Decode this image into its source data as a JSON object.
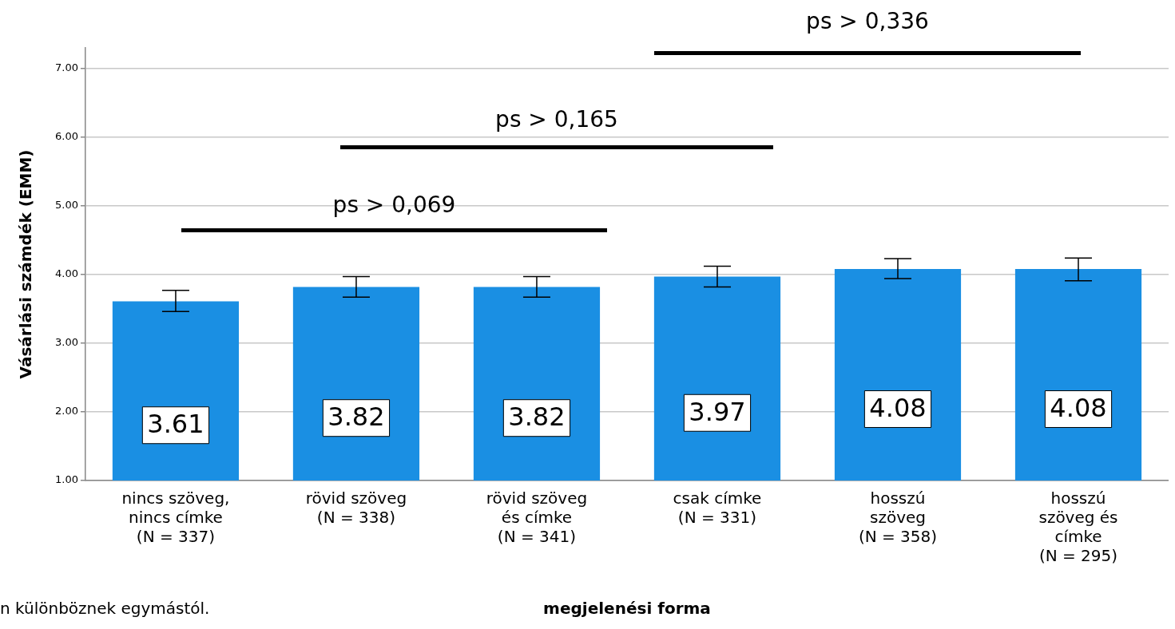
{
  "chart_data": {
    "type": "bar",
    "categories": [
      "nincs szöveg,\nnincs címke\n(N = 337)",
      "rövid szöveg\n(N = 338)",
      "rövid szöveg\nés címke\n(N = 341)",
      "csak címke\n(N = 331)",
      "hosszú\nszöveg\n(N = 358)",
      "hosszú\nszöveg és\ncímke\n(N = 295)"
    ],
    "values": [
      3.61,
      3.82,
      3.82,
      3.97,
      4.08,
      4.08
    ],
    "errors": [
      [
        3.46,
        3.77
      ],
      [
        3.67,
        3.97
      ],
      [
        3.67,
        3.97
      ],
      [
        3.82,
        4.12
      ],
      [
        3.94,
        4.23
      ],
      [
        3.91,
        4.24
      ]
    ],
    "color": "#1a8fe3",
    "ylabel": "Vásárlási számdék (EMM)",
    "xlabel": "megjelenési forma",
    "ylim": [
      1,
      7.3
    ],
    "yticks": [
      {
        "value": 1,
        "label": "1.00"
      },
      {
        "value": 2,
        "label": "2.00"
      },
      {
        "value": 3,
        "label": "3.00"
      },
      {
        "value": 4,
        "label": "4.00"
      },
      {
        "value": 5,
        "label": "5.00"
      },
      {
        "value": 6,
        "label": "6.00"
      },
      {
        "value": 7,
        "label": "7.00"
      }
    ],
    "grid": "y",
    "legend": false,
    "data_labels": true,
    "annotations": [
      "ps > 0,069",
      "ps > 0,165",
      "ps > 0,336",
      "n különböznek egymástól."
    ]
  }
}
